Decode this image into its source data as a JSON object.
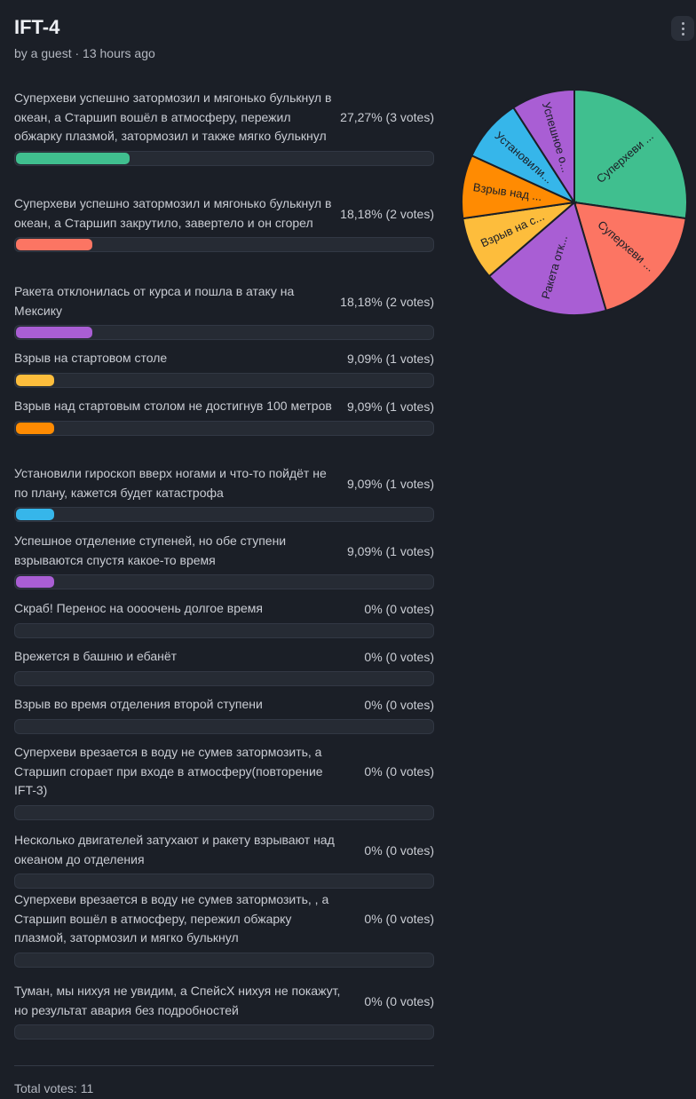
{
  "poll": {
    "title": "IFT-4",
    "meta": "by a guest · 13 hours ago",
    "menu_icon": "more-vertical-icon",
    "options": [
      {
        "label": "Суперхеви успешно затормозил и мягонько булькнул в океан, а Старшип вошёл в атмосферу, пережил обжарку плазмой, затормозил и также мягко булькнул",
        "votes_text": "27,27% (3 votes)",
        "percent": 27.27,
        "color": "#40bf8f"
      },
      {
        "label": "Суперхеви успешно затормозил и мягонько булькнул в океан, а Старшип закрутило, завертело и он сгорел",
        "votes_text": "18,18% (2 votes)",
        "percent": 18.18,
        "color": "#fc7563"
      },
      {
        "label": "Ракета отклонилась от курса и пошла в атаку на Мексику",
        "votes_text": "18,18% (2 votes)",
        "percent": 18.18,
        "color": "#a95ed4"
      },
      {
        "label": "Взрыв на стартовом столе",
        "votes_text": "9,09% (1 votes)",
        "percent": 9.09,
        "color": "#fdbd3c"
      },
      {
        "label": "Взрыв над стартовым столом не достигнув 100 метров",
        "votes_text": "9,09% (1 votes)",
        "percent": 9.09,
        "color": "#ff8b02"
      },
      {
        "label": "Установили гироскоп вверх ногами и что-то пойдёт не по плану, кажется будет катастрофа",
        "votes_text": "9,09% (1 votes)",
        "percent": 9.09,
        "color": "#36b6ea"
      },
      {
        "label": "Успешное отделение ступеней, но обе ступени взрываются спустя какое-то время",
        "votes_text": "9,09% (1 votes)",
        "percent": 9.09,
        "color": "#a95ed4"
      },
      {
        "label": "Скраб! Перенос на оооочень долгое время",
        "votes_text": "0% (0 votes)",
        "percent": 0,
        "color": "#40bf8f"
      },
      {
        "label": "Врежется в башню и ебанёт",
        "votes_text": "0% (0 votes)",
        "percent": 0,
        "color": "#fc7563"
      },
      {
        "label": "Взрыв во время отделения второй ступени",
        "votes_text": "0% (0 votes)",
        "percent": 0,
        "color": "#a95ed4"
      },
      {
        "label": "Суперхеви врезается в воду не сумев затормозить, а Старшип сгорает при входе в атмосферу(повторение IFT-3)",
        "votes_text": "0% (0 votes)",
        "percent": 0,
        "color": "#fdbd3c"
      },
      {
        "label": "Несколько двигателей затухают и ракету взрывают над океаном до отделения",
        "votes_text": "0% (0 votes)",
        "percent": 0,
        "color": "#ff8b02"
      },
      {
        "label": "Суперхеви врезается в воду не сумев затормозить, , а Старшип вошёл в атмосферу, пережил обжарку плазмой, затормозил и мягко булькнул",
        "votes_text": "0% (0 votes)",
        "percent": 0,
        "color": "#36b6ea"
      },
      {
        "label": "Туман, мы нихуя не увидим, а СпейсХ нихуя не покажут, но результат авария без подробностей",
        "votes_text": "0% (0 votes)",
        "percent": 0,
        "color": "#a95ed4"
      }
    ],
    "total": "Total votes: 11"
  },
  "chart_data": {
    "type": "pie",
    "slices": [
      {
        "label": "Суперхеви ...",
        "value": 3,
        "color": "#40bf8f"
      },
      {
        "label": "Суперхеви ...",
        "value": 2,
        "color": "#fc7563"
      },
      {
        "label": "Ракета отк...",
        "value": 2,
        "color": "#a95ed4"
      },
      {
        "label": "Взрыв на с...",
        "value": 1,
        "color": "#fdbd3c"
      },
      {
        "label": "Взрыв над ...",
        "value": 1,
        "color": "#ff8b02"
      },
      {
        "label": "Установили...",
        "value": 1,
        "color": "#36b6ea"
      },
      {
        "label": "Успешное о...",
        "value": 1,
        "color": "#a95ed4"
      }
    ]
  }
}
